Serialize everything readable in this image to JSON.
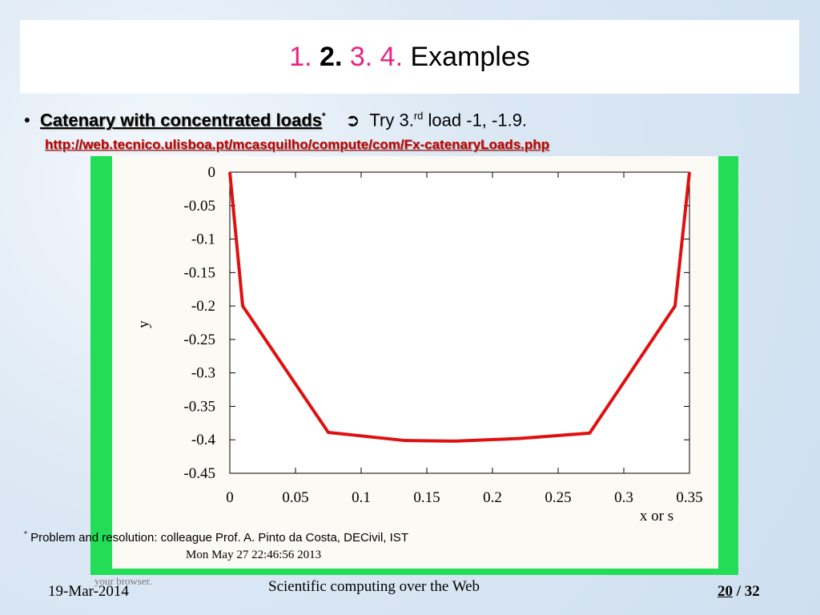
{
  "header": {
    "title": {
      "part1": "1.",
      "part2": "2.",
      "part3": "3. 4.",
      "part4": "Examples"
    }
  },
  "bullet": {
    "lead": "Catenary with concentrated loads",
    "lead_mark": "*",
    "arrow": "➲",
    "text1": "Try 3.",
    "sup": "rd",
    "text2": "load -1, -1.9.",
    "url": "http://web.tecnico.ulisboa.pt/mcasquilho/compute/com/Fx-catenaryLoads.php"
  },
  "chart_data": {
    "type": "line",
    "x_label": "x or s",
    "y_label": "y",
    "x": [
      0,
      0.0098,
      0.075,
      0.133,
      0.171,
      0.221,
      0.274,
      0.339,
      0.35
    ],
    "series": [
      {
        "color": "#e01010",
        "values": [
          0,
          -0.2,
          -0.389,
          -0.401,
          -0.402,
          -0.398,
          -0.39,
          -0.2,
          0
        ]
      }
    ],
    "xlim": [
      0,
      0.35
    ],
    "ylim": [
      -0.45,
      0
    ],
    "xticks": [
      0,
      0.05,
      0.1,
      0.15,
      0.2,
      0.25,
      0.3,
      0.35
    ],
    "yticks": [
      0,
      -0.05,
      -0.1,
      -0.15,
      -0.2,
      -0.25,
      -0.3,
      -0.35,
      -0.4,
      -0.45
    ]
  },
  "footnote": {
    "mark": "*",
    "text": "Problem and resolution: colleague Prof. A. Pinto da Costa, DECivil, IST"
  },
  "timestamp": "Mon May 27 22:46:56 2013",
  "fragment": "your browser.",
  "footer": {
    "date": "19-Mar-2014",
    "course": "Scientific computing over the Web",
    "page": "20",
    "total": "/ 32"
  }
}
